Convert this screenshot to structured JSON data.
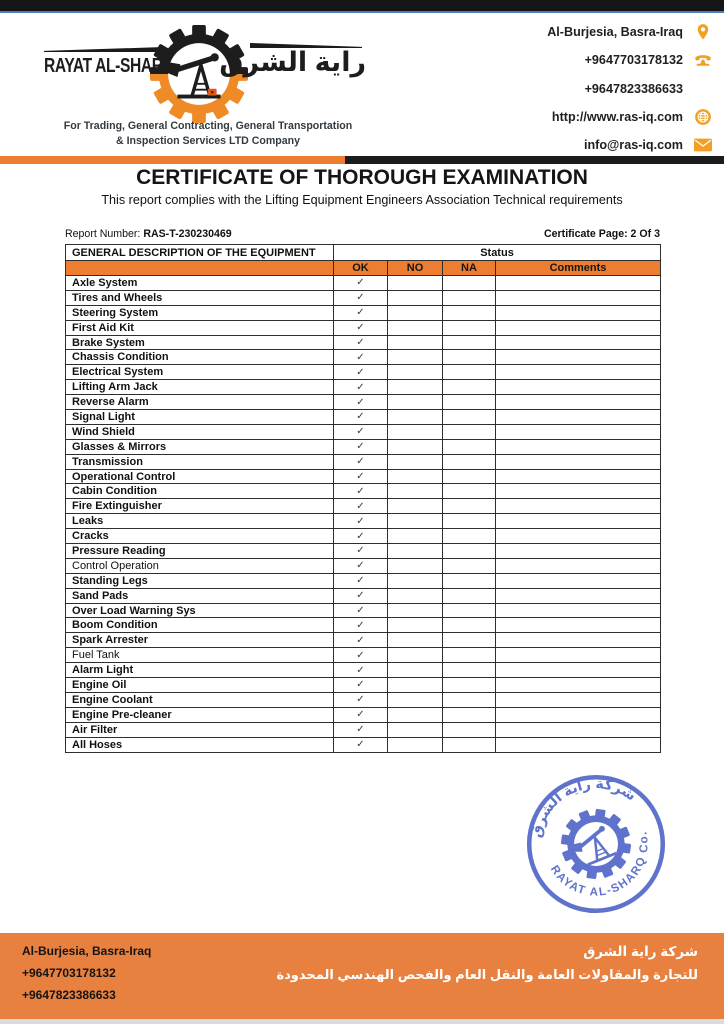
{
  "header": {
    "logo": {
      "company_en": "RAYAT AL-SHARQ",
      "company_ar": "راية الشرق",
      "tagline_line1": "For Trading, General Contracting, General Transportation",
      "tagline_line2": "& Inspection Services LTD Company"
    },
    "contact": {
      "address": "Al-Burjesia, Basra-Iraq",
      "phone1": "+9647703178132",
      "phone2": "+9647823386633",
      "website": "http://www.ras-iq.com",
      "email": "info@ras-iq.com"
    }
  },
  "title": "CERTIFICATE OF THOROUGH EXAMINATION",
  "subtitle": "This report complies with the Lifting Equipment Engineers Association Technical requirements",
  "report": {
    "number_label": "Report Number: ",
    "number": "RAS-T-230230469",
    "page": "Certificate Page: 2 Of 3"
  },
  "table": {
    "col_equipment": "GENERAL DESCRIPTION OF THE EQUIPMENT",
    "col_status": "Status",
    "status_cols": [
      "OK",
      "NO",
      "NA",
      "Comments"
    ],
    "check_glyph": "✓",
    "rows": [
      {
        "name": "Axle System",
        "bold": true,
        "ok": true
      },
      {
        "name": "Tires and Wheels",
        "bold": true,
        "ok": true
      },
      {
        "name": "Steering System",
        "bold": true,
        "ok": true
      },
      {
        "name": "First Aid Kit",
        "bold": true,
        "ok": true
      },
      {
        "name": "Brake System",
        "bold": true,
        "ok": true
      },
      {
        "name": "Chassis Condition",
        "bold": true,
        "ok": true
      },
      {
        "name": "Electrical System",
        "bold": true,
        "ok": true
      },
      {
        "name": "Lifting Arm Jack",
        "bold": true,
        "ok": true
      },
      {
        "name": "Reverse Alarm",
        "bold": true,
        "ok": true
      },
      {
        "name": "Signal Light",
        "bold": true,
        "ok": true
      },
      {
        "name": "Wind Shield",
        "bold": true,
        "ok": true
      },
      {
        "name": "Glasses & Mirrors",
        "bold": true,
        "ok": true
      },
      {
        "name": "Transmission",
        "bold": true,
        "ok": true
      },
      {
        "name": "Operational Control",
        "bold": true,
        "ok": true
      },
      {
        "name": "Cabin Condition",
        "bold": true,
        "ok": true
      },
      {
        "name": "Fire Extinguisher",
        "bold": true,
        "ok": true
      },
      {
        "name": "Leaks",
        "bold": true,
        "ok": true
      },
      {
        "name": "Cracks",
        "bold": true,
        "ok": true
      },
      {
        "name": "Pressure Reading",
        "bold": true,
        "ok": true
      },
      {
        "name": "Control Operation",
        "bold": false,
        "ok": true
      },
      {
        "name": "Standing Legs",
        "bold": true,
        "ok": true
      },
      {
        "name": "Sand Pads",
        "bold": true,
        "ok": true
      },
      {
        "name": "Over Load Warning Sys",
        "bold": true,
        "ok": true
      },
      {
        "name": "Boom Condition",
        "bold": true,
        "ok": true
      },
      {
        "name": "Spark Arrester",
        "bold": true,
        "ok": true
      },
      {
        "name": "Fuel Tank",
        "bold": false,
        "ok": true
      },
      {
        "name": "Alarm Light",
        "bold": true,
        "ok": true
      },
      {
        "name": "Engine Oil",
        "bold": true,
        "ok": true
      },
      {
        "name": "Engine Coolant",
        "bold": true,
        "ok": true
      },
      {
        "name": "Engine Pre-cleaner",
        "bold": true,
        "ok": true
      },
      {
        "name": "Air Filter",
        "bold": true,
        "ok": true
      },
      {
        "name": "All Hoses",
        "bold": true,
        "ok": true
      }
    ]
  },
  "stamp": {
    "top_text_ar": "شركة راية الشرق",
    "bottom_text": "RAYAT AL-SHARQ Co."
  },
  "footer": {
    "address": "Al-Burjesia, Basra-Iraq",
    "phone1": "+9647703178132",
    "phone2": "+9647823386633",
    "company_ar_line1": "شركة راية الشرق",
    "company_ar_line2": "للتجارة والمقاولات العامة والنقل العام والفحص الهندسي المحدودة"
  },
  "colors": {
    "accent_orange": "#ED7D31",
    "footer_orange": "#E8803F",
    "icon_orange": "#F2A024",
    "stamp_blue": "#3C55C2",
    "top_bar_black": "#161616",
    "top_bar_blue": "#4A7EBD"
  }
}
